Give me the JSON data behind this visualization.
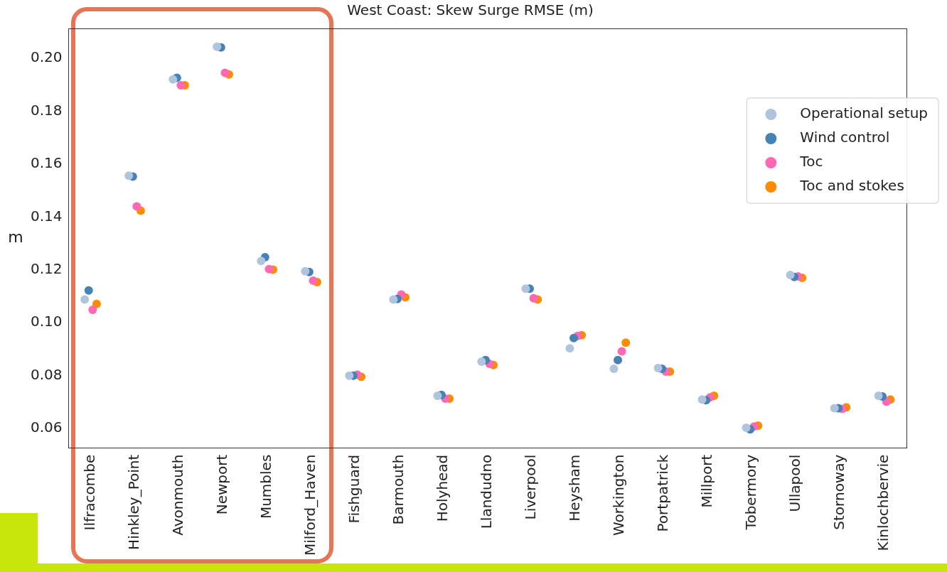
{
  "chart_data": {
    "type": "scatter",
    "title": "West Coast: Skew Surge RMSE (m)",
    "ylabel": "m",
    "categories": [
      "Ilfracombe",
      "Hinkley_Point",
      "Avonmouth",
      "Newport",
      "Mumbles",
      "Milford_Haven",
      "Fishguard",
      "Barmouth",
      "Holyhead",
      "Llandudno",
      "Liverpool",
      "Heysham",
      "Workington",
      "Portpatrick",
      "Millport",
      "Tobermory",
      "Ullapool",
      "Stornoway",
      "Kinlochbervie"
    ],
    "series": [
      {
        "name": "Operational setup",
        "color": "#b0c4de",
        "values": [
          0.1088,
          0.1556,
          0.192,
          0.2044,
          0.1234,
          0.1195,
          0.08,
          0.1088,
          0.0724,
          0.0853,
          0.1129,
          0.0903,
          0.0826,
          0.0829,
          0.071,
          0.0603,
          0.1181,
          0.0677,
          0.0724
        ]
      },
      {
        "name": "Wind control",
        "color": "#4682b4",
        "values": [
          0.1122,
          0.1553,
          0.1926,
          0.2041,
          0.1248,
          0.1192,
          0.08,
          0.109,
          0.0727,
          0.0859,
          0.1129,
          0.0942,
          0.0859,
          0.0826,
          0.0707,
          0.0597,
          0.1173,
          0.0677,
          0.0721
        ]
      },
      {
        "name": "Toc",
        "color": "#ff69b4",
        "values": [
          0.1049,
          0.144,
          0.1898,
          0.1945,
          0.1203,
          0.1159,
          0.0804,
          0.1107,
          0.0713,
          0.0845,
          0.1093,
          0.095,
          0.0892,
          0.0815,
          0.0718,
          0.0608,
          0.1175,
          0.0674,
          0.0702
        ]
      },
      {
        "name": "Toc and stokes",
        "color": "#ff8c00",
        "values": [
          0.1071,
          0.1424,
          0.1898,
          0.1939,
          0.1201,
          0.1154,
          0.0796,
          0.1096,
          0.0713,
          0.084,
          0.1088,
          0.0953,
          0.0925,
          0.0815,
          0.0724,
          0.0611,
          0.117,
          0.068,
          0.071
        ]
      }
    ],
    "ylim": [
      0.0526,
      0.2113
    ],
    "yticks": [
      {
        "value": 0.06,
        "label": "0.06"
      },
      {
        "value": 0.08,
        "label": "0.08"
      },
      {
        "value": 0.1,
        "label": "0.10"
      },
      {
        "value": 0.12,
        "label": "0.12"
      },
      {
        "value": 0.14,
        "label": "0.14"
      },
      {
        "value": 0.16,
        "label": "0.16"
      },
      {
        "value": 0.18,
        "label": "0.18"
      },
      {
        "value": 0.2,
        "label": "0.20"
      }
    ],
    "legend": "top right",
    "marker": "circle",
    "grid": false
  }
}
